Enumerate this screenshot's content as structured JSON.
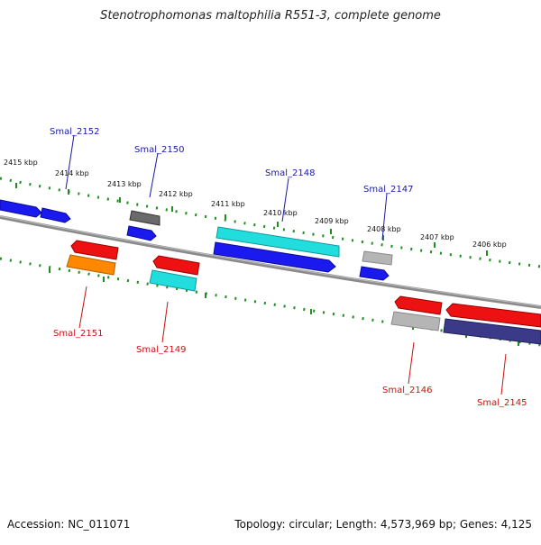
{
  "title": "Stenotrophomonas maltophilia R551-3, complete genome",
  "accession": "Accession: NC_011071",
  "summary": "Topology: circular; Length: 4,573,969 bp; Genes: 4,125",
  "colors": {
    "backbone": "#8a8a8a",
    "tick": "#1f8f1f",
    "plus_label": "#1a1aa6",
    "minus_label": "#cc1111",
    "blue": "#1a1aee",
    "cyan": "#22dddd",
    "red": "#ee1111",
    "orange": "#ff8800",
    "gray": "#777777",
    "lightgray": "#b5b5b5",
    "navy": "#3a3a88"
  },
  "scale_labels": [
    "2415 kbp",
    "2414 kbp",
    "2413 kbp",
    "2412 kbp",
    "2411 kbp",
    "2410 kbp",
    "2409 kbp",
    "2408 kbp",
    "2407 kbp",
    "2406 kbp"
  ],
  "gene_labels": [
    {
      "text": "Smal_2152",
      "strand": "plus"
    },
    {
      "text": "Smal_2150",
      "strand": "plus"
    },
    {
      "text": "Smal_2148",
      "strand": "plus"
    },
    {
      "text": "Smal_2147",
      "strand": "plus"
    },
    {
      "text": "Smal_2151",
      "strand": "minus"
    },
    {
      "text": "Smal_2149",
      "strand": "minus"
    },
    {
      "text": "Smal_2146",
      "strand": "minus"
    },
    {
      "text": "Smal_2145",
      "strand": "minus"
    }
  ]
}
